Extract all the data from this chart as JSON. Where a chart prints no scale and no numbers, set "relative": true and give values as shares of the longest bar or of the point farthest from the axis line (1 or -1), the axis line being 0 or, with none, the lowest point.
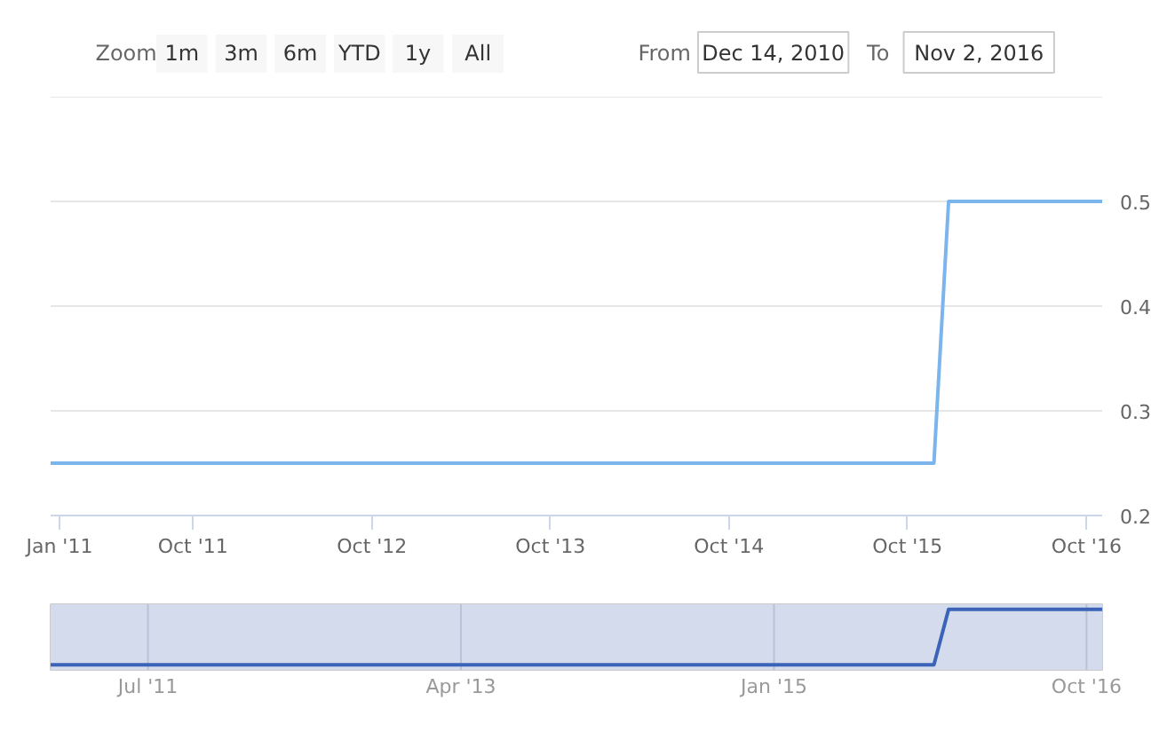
{
  "chart_data": [
    {
      "type": "other",
      "annotations": [
        "Zoom",
        "1m",
        "3m",
        "6m",
        "YTD",
        "1y",
        "All",
        "From",
        "Dec 14, 2010",
        "To",
        "Nov 2, 2016"
      ]
    },
    {
      "type": "line",
      "x": [
        "2010-12-14",
        "2015-11-24",
        "2015-12-24",
        "2016-11-02"
      ],
      "series": [
        {
          "color": "#7cb5ec",
          "values": [
            0.25,
            0.25,
            0.5,
            0.5
          ]
        }
      ],
      "xlim": [
        "2010-12-14",
        "2016-11-02"
      ],
      "xticks": [
        {
          "value": "2011-01-01",
          "label": "Jan '11"
        },
        {
          "value": "2011-10-01",
          "label": "Oct '11"
        },
        {
          "value": "2012-10-01",
          "label": "Oct '12"
        },
        {
          "value": "2013-10-01",
          "label": "Oct '13"
        },
        {
          "value": "2014-10-01",
          "label": "Oct '14"
        },
        {
          "value": "2015-10-01",
          "label": "Oct '15"
        },
        {
          "value": "2016-10-01",
          "label": "Oct '16"
        }
      ],
      "ylim": [
        0.2,
        0.6
      ],
      "yticks": [
        0.2,
        0.3,
        0.4,
        0.5,
        {
          "value": 0.6,
          "label": null
        }
      ],
      "grid": "y"
    },
    {
      "type": "line",
      "relative": true,
      "x": [
        "2010-12-14",
        "2015-11-24",
        "2015-12-24",
        "2016-11-02"
      ],
      "series": [
        {
          "color": "#3b63b8",
          "values": [
            0,
            0,
            1,
            1
          ]
        }
      ],
      "xlim": [
        "2010-12-14",
        "2016-11-02"
      ],
      "xticks": [
        {
          "value": "2011-07-01",
          "label": "Jul '11"
        },
        {
          "value": "2013-04-01",
          "label": "Apr '13"
        },
        {
          "value": "2015-01-01",
          "label": "Jan '15"
        },
        {
          "value": "2016-10-01",
          "label": "Oct '16"
        }
      ],
      "grid": "x",
      "bands": [
        {
          "axis": "x",
          "from": "2010-12-14",
          "to": "2016-11-02",
          "color": "#d3dbec"
        }
      ]
    }
  ]
}
